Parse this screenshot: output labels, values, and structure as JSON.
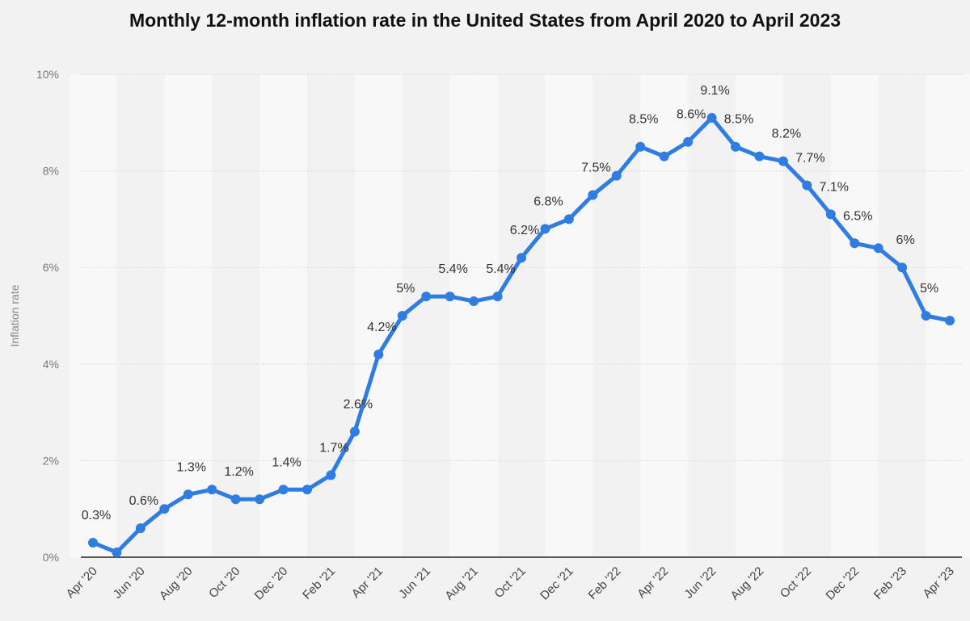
{
  "chart_data": {
    "type": "line",
    "title": "Monthly 12-month inflation rate in the United States from April 2020 to April 2023",
    "xlabel": "",
    "ylabel": "Inflation rate",
    "ylim": [
      0,
      10
    ],
    "yticks": [
      0,
      2,
      4,
      6,
      8,
      10
    ],
    "ytick_labels": [
      "0%",
      "2%",
      "4%",
      "6%",
      "8%",
      "10%"
    ],
    "grid": true,
    "colors": {
      "line": "#2f7de1",
      "background": "#f2f2f2",
      "stripe": "#f8f8f8",
      "grid": "#d9d9d9",
      "axis": "#222222"
    },
    "categories": [
      "Apr '20",
      "May '20",
      "Jun '20",
      "Jul '20",
      "Aug '20",
      "Sep '20",
      "Oct '20",
      "Nov '20",
      "Dec '20",
      "Jan '21",
      "Feb '21",
      "Mar '21",
      "Apr '21",
      "May '21",
      "Jun '21",
      "Jul '21",
      "Aug '21",
      "Sep '21",
      "Oct '21",
      "Nov '21",
      "Dec '21",
      "Jan '22",
      "Feb '22",
      "Mar '22",
      "Apr '22",
      "May '22",
      "Jun '22",
      "Jul '22",
      "Aug '22",
      "Sep '22",
      "Oct '22",
      "Nov '22",
      "Dec '22",
      "Jan '23",
      "Feb '23",
      "Mar '23",
      "Apr '23"
    ],
    "tick_labels": [
      "Apr '20",
      "Jun '20",
      "Aug '20",
      "Oct '20",
      "Dec '20",
      "Feb '21",
      "Apr '21",
      "Jun '21",
      "Aug '21",
      "Oct '21",
      "Dec '21",
      "Feb '22",
      "Apr '22",
      "Jun '22",
      "Aug '22",
      "Oct '22",
      "Dec '22",
      "Feb '23",
      "Apr '23"
    ],
    "series": [
      {
        "name": "Inflation rate",
        "values": [
          0.3,
          0.1,
          0.6,
          1.0,
          1.3,
          1.4,
          1.2,
          1.2,
          1.4,
          1.4,
          1.7,
          2.6,
          4.2,
          5.0,
          5.4,
          5.4,
          5.3,
          5.4,
          6.2,
          6.8,
          7.0,
          7.5,
          7.9,
          8.5,
          8.3,
          8.6,
          9.1,
          8.5,
          8.3,
          8.2,
          7.7,
          7.1,
          6.5,
          6.4,
          6.0,
          5.0,
          4.9
        ]
      }
    ],
    "data_labels": [
      {
        "index": 0,
        "text": "0.3%"
      },
      {
        "index": 2,
        "text": "0.6%"
      },
      {
        "index": 4,
        "text": "1.3%"
      },
      {
        "index": 6,
        "text": "1.2%"
      },
      {
        "index": 8,
        "text": "1.4%"
      },
      {
        "index": 10,
        "text": "1.7%"
      },
      {
        "index": 11,
        "text": "2.6%"
      },
      {
        "index": 12,
        "text": "4.2%"
      },
      {
        "index": 13,
        "text": "5%"
      },
      {
        "index": 15,
        "text": "5.4%"
      },
      {
        "index": 17,
        "text": "5.4%"
      },
      {
        "index": 18,
        "text": "6.2%"
      },
      {
        "index": 19,
        "text": "6.8%"
      },
      {
        "index": 21,
        "text": "7.5%"
      },
      {
        "index": 23,
        "text": "8.5%"
      },
      {
        "index": 25,
        "text": "8.6%"
      },
      {
        "index": 26,
        "text": "9.1%"
      },
      {
        "index": 27,
        "text": "8.5%"
      },
      {
        "index": 29,
        "text": "8.2%"
      },
      {
        "index": 30,
        "text": "7.7%"
      },
      {
        "index": 31,
        "text": "7.1%"
      },
      {
        "index": 32,
        "text": "6.5%"
      },
      {
        "index": 34,
        "text": "6%"
      },
      {
        "index": 35,
        "text": "5%"
      }
    ]
  }
}
